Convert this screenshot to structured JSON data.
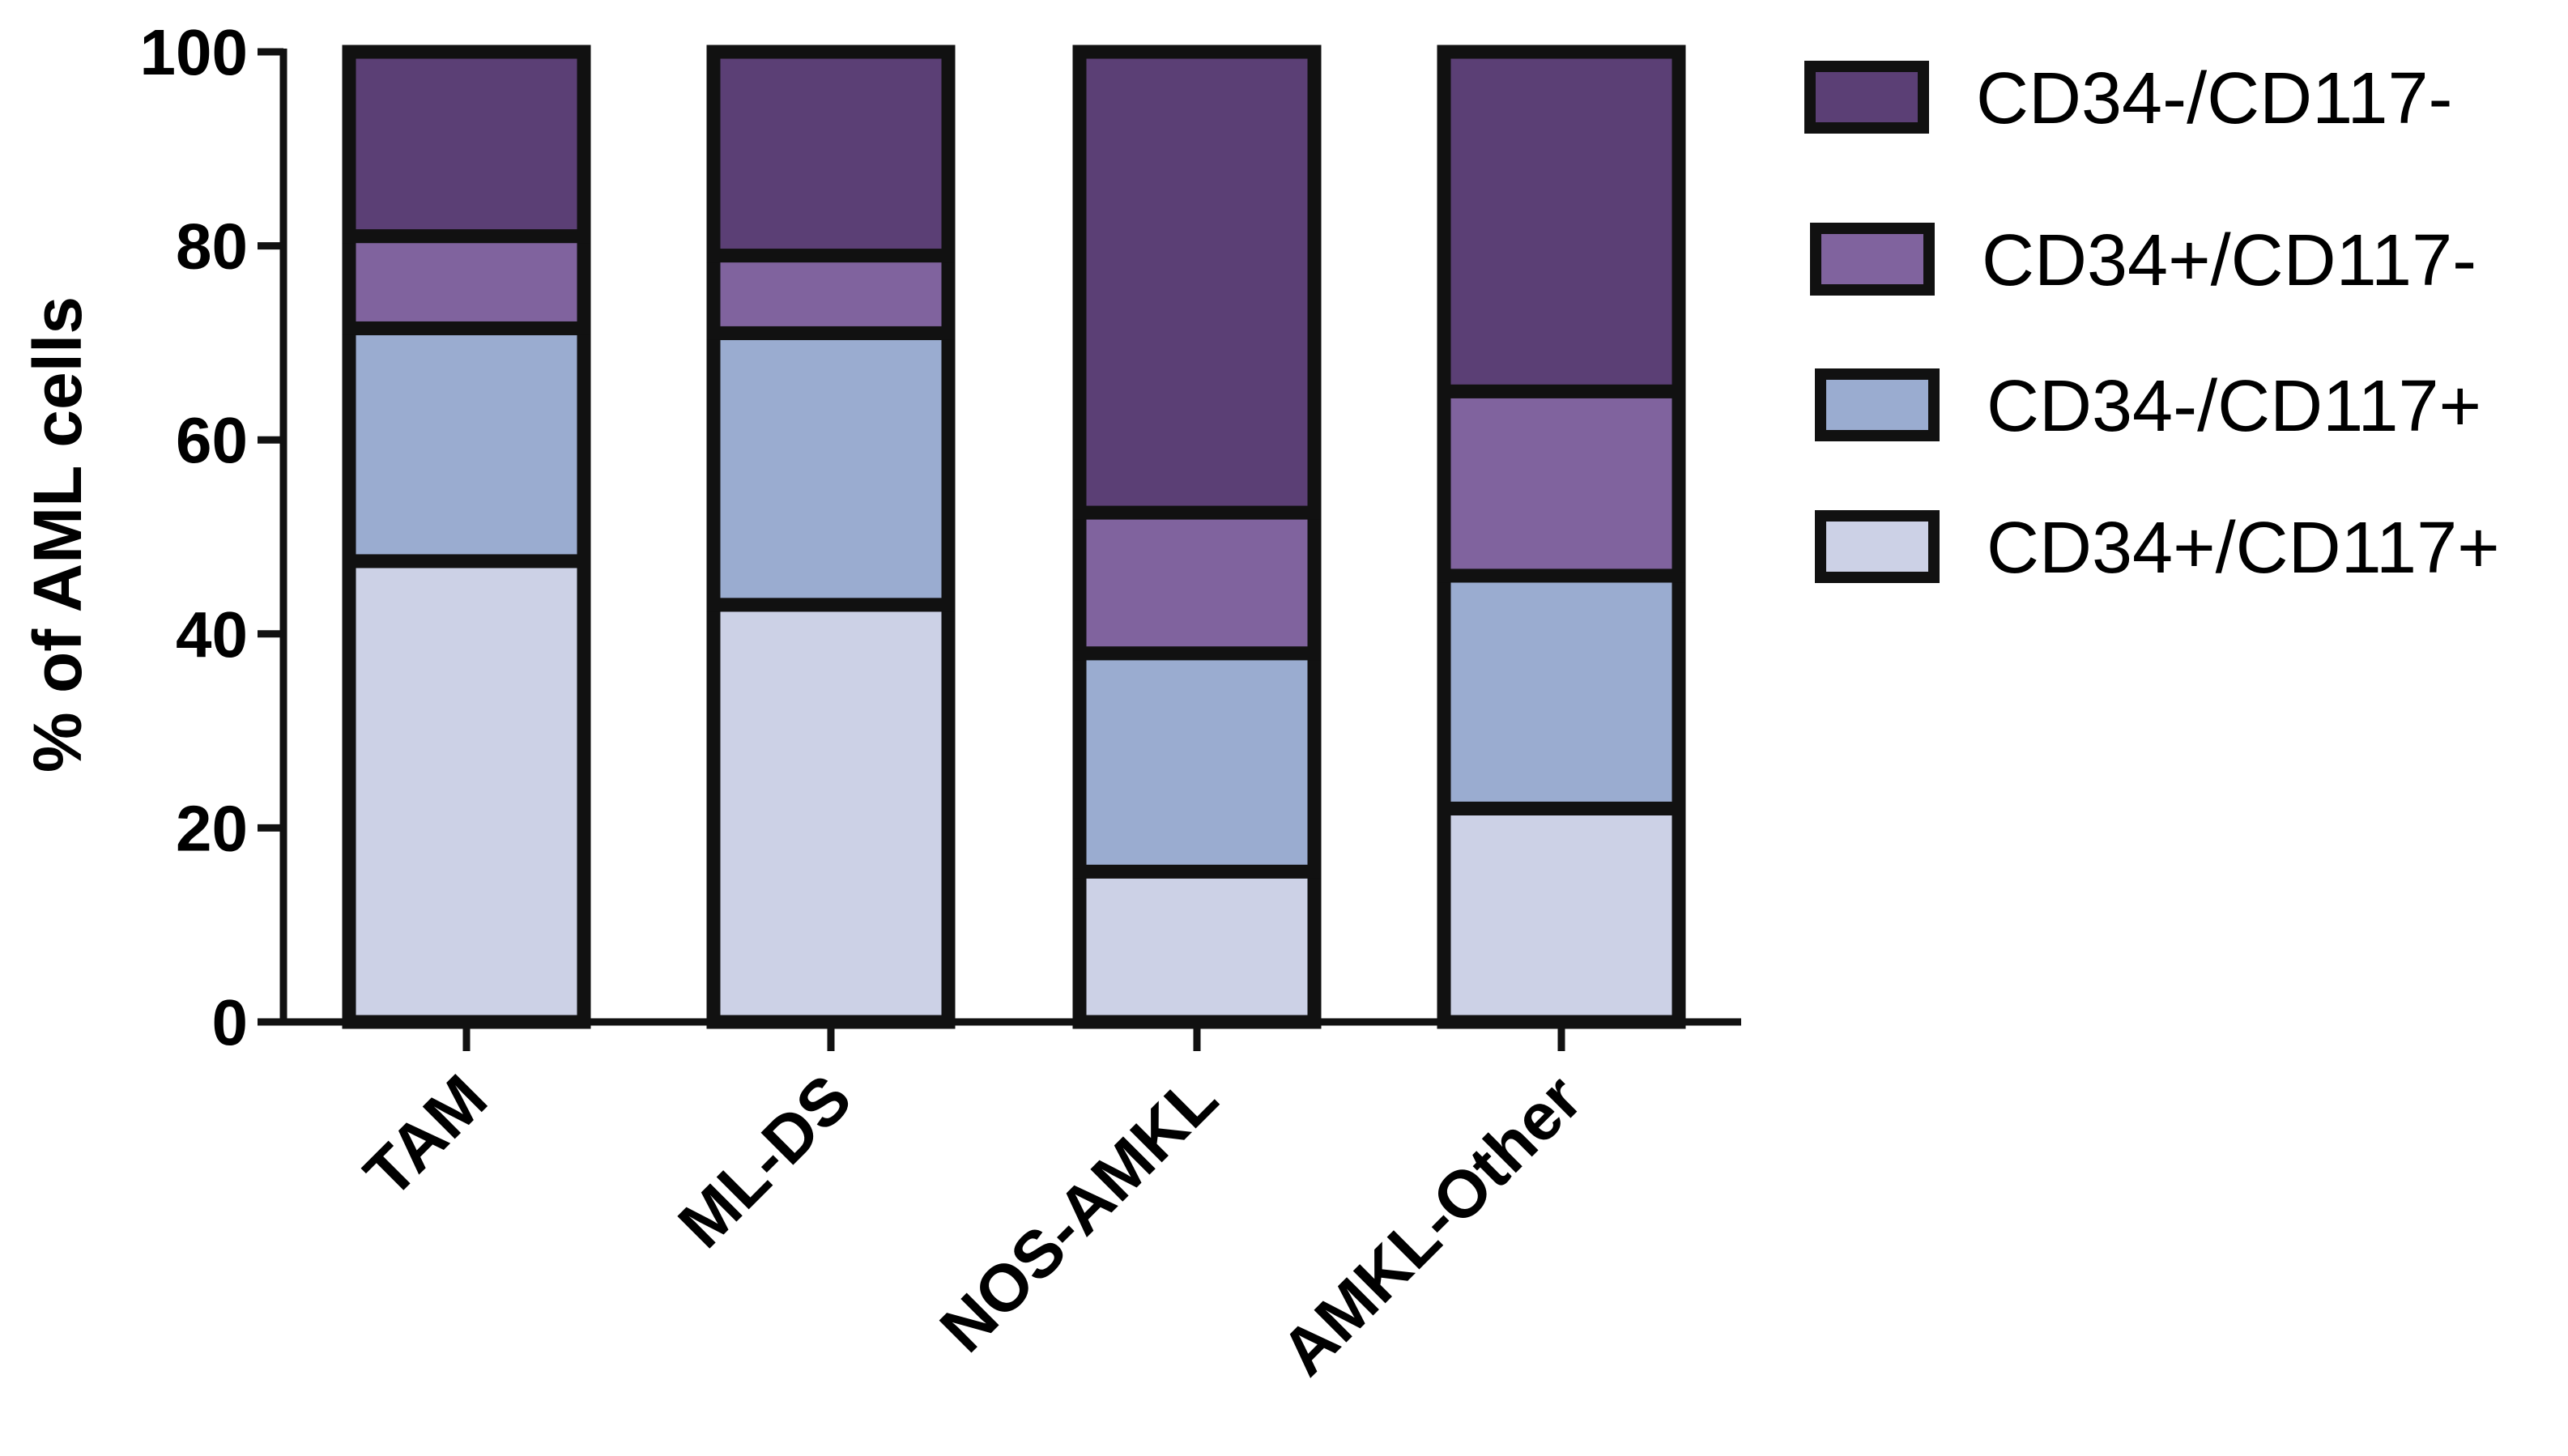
{
  "chart_data": {
    "type": "bar",
    "stacked": true,
    "title": "",
    "xlabel": "",
    "ylabel": "% of AML cells",
    "ylim": [
      0,
      100
    ],
    "yticks": [
      0,
      20,
      40,
      60,
      80,
      100
    ],
    "grid": false,
    "legend_position": "right",
    "categories": [
      "TAM",
      "ML-DS",
      "NOS-AMKL",
      "AMKL-Other"
    ],
    "series": [
      {
        "name": "CD34+/CD117+",
        "color": "#ccd1e6",
        "values": [
          47.5,
          43,
          15.5,
          22
        ]
      },
      {
        "name": "CD34-/CD117+",
        "color": "#9aacd0",
        "values": [
          24,
          28,
          22.5,
          24
        ]
      },
      {
        "name": "CD34+/CD117-",
        "color": "#80639e",
        "values": [
          9.5,
          8,
          14.5,
          19
        ]
      },
      {
        "name": "CD34-/CD117-",
        "color": "#5b3f75",
        "values": [
          19,
          21,
          47.5,
          35
        ]
      }
    ],
    "legend_order": [
      "CD34-/CD117-",
      "CD34+/CD117-",
      "CD34-/CD117+",
      "CD34+/CD117+"
    ]
  }
}
